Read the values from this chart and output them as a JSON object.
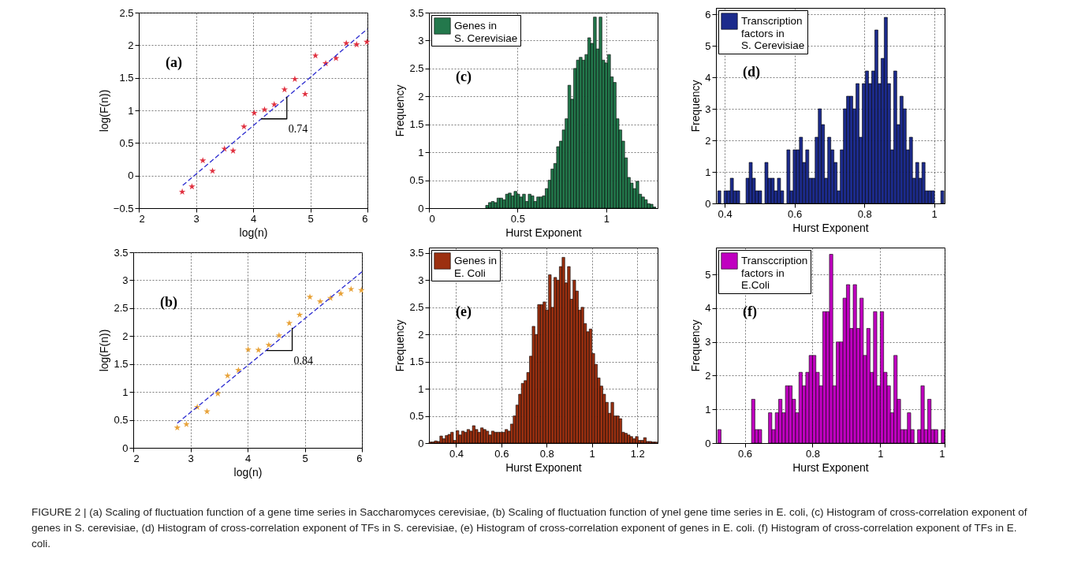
{
  "chart_data": [
    {
      "type": "scatter",
      "xlabel": "log(n)",
      "ylabel": "log(F(n))",
      "xlim": [
        2,
        6
      ],
      "ylim": [
        -0.5,
        2.5
      ],
      "xticks": [
        2,
        3,
        4,
        5,
        6
      ],
      "yticks": [
        -0.5,
        0,
        0.5,
        1,
        1.5,
        2,
        2.5
      ],
      "grid": true,
      "series": [
        {
          "marker": "star",
          "color": "#e0303f",
          "x": [
            2.76,
            2.93,
            3.12,
            3.29,
            3.5,
            3.65,
            3.84,
            4.02,
            4.2,
            4.37,
            4.55,
            4.73,
            4.91,
            5.09,
            5.27,
            5.45,
            5.63,
            5.81,
            5.99
          ],
          "values": [
            -0.25,
            -0.17,
            0.23,
            0.07,
            0.41,
            0.38,
            0.75,
            0.96,
            1.01,
            1.09,
            1.32,
            1.48,
            1.25,
            1.84,
            1.72,
            1.8,
            2.03,
            2.01,
            2.05
          ]
        },
        {
          "type": "line",
          "line_style": "dashed",
          "color": "#2b2bd0",
          "x": [
            2.77,
            6
          ],
          "values": [
            -0.15,
            2.25
          ]
        },
        {
          "type": "line",
          "line_style": "solid",
          "color": "#000000",
          "x": [
            4.14,
            4.59,
            4.59
          ],
          "values": [
            0.87,
            0.87,
            1.21
          ]
        }
      ],
      "annotations": [
        "(a)",
        "0.74"
      ]
    },
    {
      "type": "histogram",
      "xlabel": "Hurst Exponent",
      "ylabel": "Frequency",
      "xlim": [
        0,
        1.29
      ],
      "ylim": [
        0,
        3.5
      ],
      "xticks": [
        0,
        0.5,
        1
      ],
      "yticks": [
        0,
        0.5,
        1,
        1.5,
        2,
        2.5,
        3,
        3.5
      ],
      "grid": true,
      "legend": "top left",
      "bins": [
        0.32,
        0.336,
        0.352,
        0.368,
        0.384,
        0.4,
        0.416,
        0.432,
        0.448,
        0.464,
        0.48,
        0.496,
        0.512,
        0.528,
        0.544,
        0.56,
        0.576,
        0.592,
        0.608,
        0.624,
        0.64,
        0.656,
        0.672,
        0.688,
        0.704,
        0.72,
        0.736,
        0.752,
        0.768,
        0.784,
        0.8,
        0.816,
        0.832,
        0.848,
        0.864,
        0.88,
        0.896,
        0.912,
        0.928,
        0.944,
        0.96,
        0.976,
        0.992,
        1.008,
        1.024,
        1.04,
        1.056,
        1.072,
        1.088,
        1.104,
        1.12,
        1.136,
        1.152,
        1.168,
        1.184,
        1.2,
        1.216,
        1.232,
        1.248,
        1.264,
        1.28
      ],
      "series": [
        {
          "name": "Genes in S. Cerevisiae",
          "color": "#23784c",
          "values": [
            0.05,
            0.1,
            0.12,
            0.1,
            0.18,
            0.18,
            0.15,
            0.25,
            0.27,
            0.22,
            0.3,
            0.25,
            0.2,
            0.25,
            0.12,
            0.25,
            0.22,
            0.12,
            0.2,
            0.2,
            0.22,
            0.35,
            0.5,
            0.7,
            0.8,
            1.1,
            1.2,
            1.4,
            1.6,
            2.2,
            1.95,
            2.5,
            2.65,
            2.7,
            2.65,
            2.75,
            3.05,
            2.95,
            3.42,
            2.85,
            3.42,
            2.65,
            2.6,
            2.75,
            2.35,
            2.25,
            1.6,
            1.4,
            1.2,
            0.9,
            0.55,
            0.45,
            0.35,
            0.48,
            0.25,
            0.2,
            0.15,
            0.08,
            0.07,
            0.02
          ]
        }
      ],
      "annotations": [
        "(c)"
      ]
    },
    {
      "type": "histogram",
      "xlabel": "Hurst Exponent",
      "ylabel": "Frequency",
      "xlim": [
        0.375,
        1.03
      ],
      "ylim": [
        0,
        6.2
      ],
      "xticks": [
        0.4,
        0.6,
        0.8,
        1
      ],
      "yticks": [
        0,
        1,
        2,
        3,
        4,
        5,
        6
      ],
      "grid": true,
      "legend": "top left",
      "bins": [
        0.38,
        0.389,
        0.398,
        0.407,
        0.416,
        0.425,
        0.434,
        0.443,
        0.452,
        0.461,
        0.47,
        0.479,
        0.488,
        0.497,
        0.506,
        0.515,
        0.524,
        0.533,
        0.542,
        0.551,
        0.56,
        0.569,
        0.578,
        0.587,
        0.596,
        0.605,
        0.614,
        0.623,
        0.632,
        0.641,
        0.65,
        0.659,
        0.668,
        0.677,
        0.686,
        0.695,
        0.704,
        0.713,
        0.722,
        0.731,
        0.74,
        0.749,
        0.758,
        0.767,
        0.776,
        0.785,
        0.794,
        0.803,
        0.812,
        0.821,
        0.83,
        0.839,
        0.848,
        0.857,
        0.866,
        0.875,
        0.884,
        0.893,
        0.902,
        0.911,
        0.92,
        0.929,
        0.938,
        0.947,
        0.956,
        0.965,
        0.974,
        0.983,
        0.992,
        1.001,
        1.01,
        1.019,
        1.028
      ],
      "series": [
        {
          "name": "Transcription factors in S. Cerevisiae",
          "color": "#1c2b8c",
          "values": [
            0.4,
            0,
            0.4,
            0.4,
            0.8,
            0.4,
            0.4,
            0,
            0,
            0.8,
            1.3,
            0.8,
            0.4,
            0.4,
            0,
            1.3,
            0.8,
            0.8,
            0.4,
            0.8,
            0.4,
            0,
            1.7,
            0.4,
            1.7,
            1.7,
            2.1,
            1.3,
            1.7,
            0.8,
            0.8,
            2.1,
            3,
            2.5,
            0.8,
            2.1,
            1.7,
            1.3,
            0.4,
            1.7,
            3,
            3.4,
            3.4,
            3,
            3.8,
            2.1,
            3.8,
            4.2,
            3.8,
            4.2,
            5.5,
            3.8,
            4.6,
            5.9,
            3.8,
            1.7,
            4.2,
            2.5,
            3.4,
            3,
            1.7,
            2.1,
            0.8,
            1.3,
            0.8,
            1.3,
            0.4,
            0.4,
            0.4,
            0,
            0,
            0.4
          ]
        }
      ],
      "annotations": [
        "(d)"
      ]
    },
    {
      "type": "scatter",
      "xlabel": "log(n)",
      "ylabel": "log(F(n))",
      "xlim": [
        2,
        6
      ],
      "ylim": [
        0,
        3.5
      ],
      "xticks": [
        2,
        3,
        4,
        5,
        6
      ],
      "yticks": [
        0,
        0.5,
        1,
        1.5,
        2,
        2.5,
        3,
        3.5
      ],
      "grid": true,
      "series": [
        {
          "marker": "star",
          "color": "#e8a33a",
          "x": [
            2.77,
            2.93,
            3.12,
            3.29,
            3.48,
            3.65,
            3.84,
            4.01,
            4.19,
            4.37,
            4.55,
            4.73,
            4.91,
            5.09,
            5.27,
            5.45,
            5.63,
            5.81,
            5.99
          ],
          "values": [
            0.36,
            0.42,
            0.73,
            0.65,
            0.97,
            1.29,
            1.39,
            1.76,
            1.75,
            1.84,
            2.01,
            2.23,
            2.38,
            2.7,
            2.62,
            2.68,
            2.76,
            2.84,
            2.82
          ]
        },
        {
          "type": "line",
          "line_style": "dashed",
          "color": "#2b2bd0",
          "x": [
            2.77,
            6
          ],
          "values": [
            0.44,
            3.15
          ]
        },
        {
          "type": "line",
          "line_style": "solid",
          "color": "#000000",
          "x": [
            4.33,
            4.78,
            4.78
          ],
          "values": [
            1.74,
            1.74,
            2.15
          ]
        }
      ],
      "annotations": [
        "(b)",
        "0.84"
      ]
    },
    {
      "type": "histogram",
      "xlabel": "Hurst Exponent",
      "ylabel": "Frequency",
      "xlim": [
        0.28,
        1.29
      ],
      "ylim": [
        0,
        3.6
      ],
      "xticks": [
        0.4,
        0.6,
        0.8,
        1,
        1.2
      ],
      "yticks": [
        0,
        0.5,
        1,
        1.5,
        2,
        2.5,
        3,
        3.5
      ],
      "grid": true,
      "legend": "top left",
      "bins": [
        0.28,
        0.292,
        0.304,
        0.316,
        0.328,
        0.34,
        0.352,
        0.364,
        0.376,
        0.388,
        0.4,
        0.412,
        0.424,
        0.436,
        0.448,
        0.46,
        0.472,
        0.484,
        0.496,
        0.508,
        0.52,
        0.532,
        0.544,
        0.556,
        0.568,
        0.58,
        0.592,
        0.604,
        0.616,
        0.628,
        0.64,
        0.652,
        0.664,
        0.676,
        0.688,
        0.7,
        0.712,
        0.724,
        0.736,
        0.748,
        0.76,
        0.772,
        0.784,
        0.796,
        0.808,
        0.82,
        0.832,
        0.844,
        0.856,
        0.868,
        0.88,
        0.892,
        0.904,
        0.916,
        0.928,
        0.94,
        0.952,
        0.964,
        0.976,
        0.988,
        1.0,
        1.012,
        1.024,
        1.036,
        1.048,
        1.06,
        1.072,
        1.084,
        1.096,
        1.108,
        1.12,
        1.132,
        1.144,
        1.156,
        1.168,
        1.18,
        1.192,
        1.204,
        1.216,
        1.228,
        1.24,
        1.252,
        1.264,
        1.276,
        1.288
      ],
      "series": [
        {
          "name": "Genes in E. Coli",
          "color": "#9c3010",
          "values": [
            0.02,
            0.02,
            0.04,
            0.03,
            0.13,
            0.08,
            0.14,
            0.16,
            0.2,
            0.05,
            0.23,
            0.15,
            0.22,
            0.2,
            0.25,
            0.22,
            0.32,
            0.25,
            0.2,
            0.28,
            0.25,
            0.22,
            0.15,
            0.22,
            0.2,
            0.2,
            0.2,
            0.2,
            0.25,
            0.22,
            0.35,
            0.5,
            0.7,
            0.9,
            1.1,
            1.15,
            1.3,
            1.6,
            2.15,
            2.0,
            2.55,
            2.55,
            2.6,
            2.45,
            3.1,
            2.5,
            3.05,
            3.0,
            3.25,
            3.42,
            2.95,
            3.25,
            2.65,
            3.0,
            2.8,
            2.45,
            2.5,
            2.2,
            2.05,
            2.1,
            1.65,
            1.45,
            1.2,
            1.05,
            0.9,
            0.75,
            0.55,
            0.75,
            0.5,
            0.5,
            0.45,
            0.2,
            0.18,
            0.15,
            0.12,
            0.08,
            0.12,
            0.05,
            0.05,
            0.1,
            0.03,
            0.03,
            0.02,
            0.02
          ]
        }
      ],
      "annotations": [
        "(e)"
      ]
    },
    {
      "type": "histogram",
      "xlabel": "Hurst Exponent",
      "ylabel": "Frequency",
      "xlim": [
        0.515,
        1.19
      ],
      "ylim": [
        0,
        5.8
      ],
      "xticks": [
        0.6,
        0.8,
        1,
        {
          "value": 1.19,
          "label": "1"
        }
      ],
      "yticks": [
        0,
        1,
        2,
        3,
        4,
        5
      ],
      "grid": true,
      "legend": "top left",
      "bins": [
        0.52,
        0.53,
        0.54,
        0.55,
        0.56,
        0.57,
        0.58,
        0.59,
        0.6,
        0.61,
        0.62,
        0.63,
        0.64,
        0.65,
        0.66,
        0.67,
        0.68,
        0.69,
        0.7,
        0.71,
        0.72,
        0.73,
        0.74,
        0.75,
        0.76,
        0.77,
        0.78,
        0.79,
        0.8,
        0.81,
        0.82,
        0.83,
        0.84,
        0.85,
        0.86,
        0.87,
        0.88,
        0.89,
        0.9,
        0.91,
        0.92,
        0.93,
        0.94,
        0.95,
        0.96,
        0.97,
        0.98,
        0.99,
        1.0,
        1.01,
        1.02,
        1.03,
        1.04,
        1.05,
        1.06,
        1.07,
        1.08,
        1.09,
        1.1,
        1.11,
        1.12,
        1.13,
        1.14,
        1.15,
        1.16,
        1.17,
        1.18,
        1.19
      ],
      "series": [
        {
          "name": "Transccription factors in E.Coli",
          "color": "#c000c0",
          "values": [
            0.4,
            0,
            0,
            0,
            0,
            0,
            0,
            0,
            0,
            0,
            1.3,
            0.4,
            0.4,
            0,
            0,
            0.9,
            0.4,
            0.9,
            1.3,
            0.9,
            1.7,
            1.7,
            1.3,
            0.9,
            2.1,
            1.7,
            2.1,
            2.6,
            2.6,
            2.1,
            1.7,
            3.9,
            3.9,
            5.6,
            1.7,
            3,
            3,
            4.3,
            4.7,
            3.4,
            4.7,
            3.4,
            4.3,
            2.6,
            3.4,
            2.1,
            3.9,
            1.7,
            3.9,
            2.1,
            1.7,
            0.9,
            2.6,
            1.3,
            0.4,
            0.4,
            0.9,
            0.4,
            0,
            0.4,
            1.7,
            0.4,
            1.3,
            0.4,
            0.4,
            0,
            0.4
          ]
        }
      ],
      "annotations": [
        "(f)"
      ]
    },
    {
      "type": "other",
      "annotations": [
        "FIGURE 2 | (a) Scaling of fluctuation function of a gene time series in Saccharomyces cerevisiae, (b) Scaling of fluctuation function of ynel gene time series in E. coli, (c) Histogram of cross-correlation exponent of genes in S. cerevisiae, (d) Histogram of cross-correlation exponent of TFs in S. cerevisiae, (e) Histogram of cross-correlation exponent of genes in E. coli. (f) Histogram of cross-correlation exponent of TFs in E. coli."
      ]
    }
  ]
}
